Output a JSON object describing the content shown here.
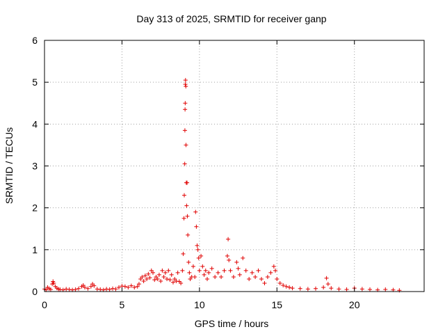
{
  "chart_data": {
    "type": "scatter",
    "title": "Day 313 of 2025, SRMTID for receiver ganp",
    "xlabel": "GPS time / hours",
    "ylabel": "SRMTID / TECUs",
    "xlim": [
      0,
      24.5
    ],
    "ylim": [
      0,
      6
    ],
    "x_ticks": [
      0,
      5,
      10,
      15,
      20
    ],
    "y_ticks": [
      0,
      1,
      2,
      3,
      4,
      5,
      6
    ],
    "x_tick_labels": [
      "0",
      "5",
      "10",
      "15",
      "20"
    ],
    "y_tick_labels": [
      "0",
      "1",
      "2",
      "3",
      "4",
      "5",
      "6"
    ],
    "grid": true,
    "marker": "+",
    "series": [
      {
        "name": "SRMTID",
        "color": "#e00000",
        "points": [
          [
            0.0,
            0.06
          ],
          [
            0.1,
            0.04
          ],
          [
            0.2,
            0.1
          ],
          [
            0.3,
            0.07
          ],
          [
            0.4,
            0.05
          ],
          [
            0.5,
            0.18
          ],
          [
            0.55,
            0.24
          ],
          [
            0.6,
            0.2
          ],
          [
            0.7,
            0.12
          ],
          [
            0.8,
            0.08
          ],
          [
            0.9,
            0.06
          ],
          [
            1.0,
            0.05
          ],
          [
            1.2,
            0.04
          ],
          [
            1.4,
            0.06
          ],
          [
            1.6,
            0.05
          ],
          [
            1.8,
            0.04
          ],
          [
            2.0,
            0.05
          ],
          [
            2.2,
            0.07
          ],
          [
            2.4,
            0.12
          ],
          [
            2.5,
            0.15
          ],
          [
            2.6,
            0.1
          ],
          [
            2.8,
            0.07
          ],
          [
            3.0,
            0.12
          ],
          [
            3.1,
            0.18
          ],
          [
            3.2,
            0.14
          ],
          [
            3.4,
            0.06
          ],
          [
            3.6,
            0.05
          ],
          [
            3.8,
            0.04
          ],
          [
            4.0,
            0.06
          ],
          [
            4.2,
            0.05
          ],
          [
            4.4,
            0.07
          ],
          [
            4.6,
            0.06
          ],
          [
            4.8,
            0.1
          ],
          [
            5.0,
            0.13
          ],
          [
            5.2,
            0.12
          ],
          [
            5.4,
            0.1
          ],
          [
            5.6,
            0.14
          ],
          [
            5.8,
            0.1
          ],
          [
            6.0,
            0.12
          ],
          [
            6.1,
            0.18
          ],
          [
            6.2,
            0.3
          ],
          [
            6.3,
            0.35
          ],
          [
            6.4,
            0.25
          ],
          [
            6.5,
            0.38
          ],
          [
            6.6,
            0.3
          ],
          [
            6.7,
            0.42
          ],
          [
            6.8,
            0.33
          ],
          [
            6.9,
            0.5
          ],
          [
            7.0,
            0.45
          ],
          [
            7.1,
            0.28
          ],
          [
            7.2,
            0.35
          ],
          [
            7.3,
            0.3
          ],
          [
            7.4,
            0.4
          ],
          [
            7.5,
            0.25
          ],
          [
            7.6,
            0.5
          ],
          [
            7.7,
            0.35
          ],
          [
            7.8,
            0.45
          ],
          [
            7.9,
            0.3
          ],
          [
            8.0,
            0.5
          ],
          [
            8.1,
            0.28
          ],
          [
            8.2,
            0.4
          ],
          [
            8.3,
            0.22
          ],
          [
            8.4,
            0.3
          ],
          [
            8.5,
            0.25
          ],
          [
            8.6,
            0.45
          ],
          [
            8.7,
            0.24
          ],
          [
            8.8,
            0.2
          ],
          [
            8.9,
            0.5
          ],
          [
            8.95,
            0.9
          ],
          [
            9.0,
            1.75
          ],
          [
            9.02,
            2.3
          ],
          [
            9.05,
            3.05
          ],
          [
            9.06,
            3.85
          ],
          [
            9.07,
            4.35
          ],
          [
            9.08,
            4.5
          ],
          [
            9.09,
            4.95
          ],
          [
            9.1,
            5.05
          ],
          [
            9.12,
            4.9
          ],
          [
            9.13,
            3.5
          ],
          [
            9.15,
            2.6
          ],
          [
            9.17,
            2.05
          ],
          [
            9.2,
            2.6
          ],
          [
            9.22,
            1.8
          ],
          [
            9.25,
            1.35
          ],
          [
            9.3,
            0.7
          ],
          [
            9.35,
            0.45
          ],
          [
            9.4,
            0.3
          ],
          [
            9.5,
            0.35
          ],
          [
            9.6,
            0.6
          ],
          [
            9.7,
            0.35
          ],
          [
            9.75,
            1.9
          ],
          [
            9.8,
            1.55
          ],
          [
            9.85,
            1.1
          ],
          [
            9.9,
            1.0
          ],
          [
            9.95,
            0.8
          ],
          [
            10.0,
            0.5
          ],
          [
            10.1,
            0.85
          ],
          [
            10.2,
            0.6
          ],
          [
            10.3,
            0.4
          ],
          [
            10.4,
            0.5
          ],
          [
            10.5,
            0.3
          ],
          [
            10.6,
            0.45
          ],
          [
            10.8,
            0.55
          ],
          [
            11.0,
            0.35
          ],
          [
            11.2,
            0.45
          ],
          [
            11.4,
            0.35
          ],
          [
            11.6,
            0.5
          ],
          [
            11.8,
            0.85
          ],
          [
            11.85,
            1.25
          ],
          [
            11.9,
            0.75
          ],
          [
            12.0,
            0.5
          ],
          [
            12.2,
            0.35
          ],
          [
            12.4,
            0.7
          ],
          [
            12.5,
            0.55
          ],
          [
            12.6,
            0.4
          ],
          [
            12.8,
            0.8
          ],
          [
            13.0,
            0.5
          ],
          [
            13.2,
            0.3
          ],
          [
            13.4,
            0.45
          ],
          [
            13.6,
            0.35
          ],
          [
            13.8,
            0.5
          ],
          [
            14.0,
            0.3
          ],
          [
            14.2,
            0.2
          ],
          [
            14.4,
            0.35
          ],
          [
            14.6,
            0.45
          ],
          [
            14.8,
            0.6
          ],
          [
            14.9,
            0.5
          ],
          [
            15.0,
            0.3
          ],
          [
            15.2,
            0.2
          ],
          [
            15.4,
            0.15
          ],
          [
            15.6,
            0.12
          ],
          [
            15.8,
            0.1
          ],
          [
            16.0,
            0.08
          ],
          [
            16.5,
            0.07
          ],
          [
            17.0,
            0.06
          ],
          [
            17.5,
            0.07
          ],
          [
            18.0,
            0.1
          ],
          [
            18.2,
            0.32
          ],
          [
            18.3,
            0.18
          ],
          [
            18.5,
            0.08
          ],
          [
            19.0,
            0.06
          ],
          [
            19.5,
            0.05
          ],
          [
            20.0,
            0.08
          ],
          [
            20.5,
            0.06
          ],
          [
            21.0,
            0.05
          ],
          [
            21.5,
            0.04
          ],
          [
            22.0,
            0.05
          ],
          [
            22.5,
            0.04
          ],
          [
            22.9,
            0.03
          ]
        ]
      }
    ]
  }
}
